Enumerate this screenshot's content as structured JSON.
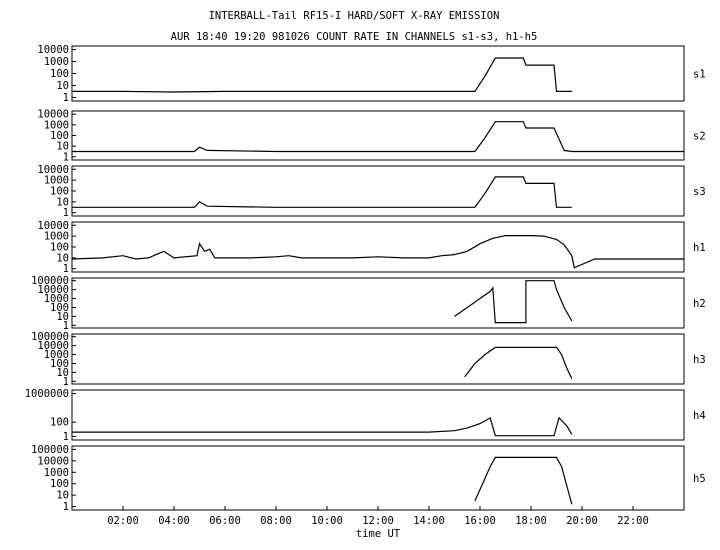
{
  "chart_data": {
    "type": "line",
    "title": "INTERBALL-Tail RF15-I HARD/SOFT X-RAY EMISSION",
    "subtitle": "AUR 18:40 19:20 981026  COUNT RATE IN CHANNELS s1-s3, h1-h5",
    "xlabel": "time UT",
    "x_ticks": [
      "02:00",
      "04:00",
      "06:00",
      "08:00",
      "10:00",
      "12:00",
      "14:00",
      "16:00",
      "18:00",
      "20:00",
      "22:00"
    ],
    "xlim_hours": [
      0,
      24
    ],
    "y_scale": "log",
    "panels": [
      {
        "name": "s1",
        "y_ticks": [
          "10000",
          "1000",
          "100",
          "10",
          "1"
        ],
        "ylim_log10": [
          -0.3,
          4.3
        ],
        "points": [
          [
            0.0,
            0.5
          ],
          [
            2.0,
            0.5
          ],
          [
            4.0,
            0.45
          ],
          [
            6.0,
            0.5
          ],
          [
            8.0,
            0.5
          ],
          [
            10.0,
            0.5
          ],
          [
            12.0,
            0.5
          ],
          [
            14.0,
            0.5
          ],
          [
            15.8,
            0.5
          ],
          [
            16.2,
            1.8
          ],
          [
            16.6,
            3.3
          ],
          [
            17.7,
            3.3
          ],
          [
            17.8,
            2.7
          ],
          [
            18.9,
            2.7
          ],
          [
            19.0,
            0.5
          ],
          [
            19.6,
            0.5
          ]
        ]
      },
      {
        "name": "s2",
        "y_ticks": [
          "10000",
          "1000",
          "100",
          "10",
          "1"
        ],
        "ylim_log10": [
          -0.3,
          4.3
        ],
        "points": [
          [
            0.0,
            0.5
          ],
          [
            4.8,
            0.5
          ],
          [
            5.0,
            0.9
          ],
          [
            5.3,
            0.6
          ],
          [
            8.0,
            0.5
          ],
          [
            12.0,
            0.5
          ],
          [
            15.8,
            0.5
          ],
          [
            16.2,
            1.8
          ],
          [
            16.6,
            3.3
          ],
          [
            17.7,
            3.3
          ],
          [
            17.8,
            2.7
          ],
          [
            18.9,
            2.7
          ],
          [
            19.3,
            0.6
          ],
          [
            19.6,
            0.5
          ],
          [
            24.0,
            0.5
          ]
        ]
      },
      {
        "name": "s3",
        "y_ticks": [
          "10000",
          "1000",
          "100",
          "10",
          "1"
        ],
        "ylim_log10": [
          -0.3,
          4.3
        ],
        "points": [
          [
            0.0,
            0.5
          ],
          [
            4.8,
            0.5
          ],
          [
            5.0,
            1.0
          ],
          [
            5.3,
            0.6
          ],
          [
            8.0,
            0.5
          ],
          [
            12.0,
            0.5
          ],
          [
            15.8,
            0.5
          ],
          [
            16.2,
            1.8
          ],
          [
            16.6,
            3.3
          ],
          [
            17.7,
            3.3
          ],
          [
            17.8,
            2.7
          ],
          [
            18.9,
            2.7
          ],
          [
            19.0,
            0.5
          ],
          [
            19.6,
            0.5
          ]
        ]
      },
      {
        "name": "h1",
        "y_ticks": [
          "10000",
          "1000",
          "100",
          "10",
          "1"
        ],
        "ylim_log10": [
          -0.3,
          4.3
        ],
        "points": [
          [
            0.0,
            0.9
          ],
          [
            1.2,
            1.0
          ],
          [
            2.0,
            1.2
          ],
          [
            2.5,
            0.9
          ],
          [
            3.0,
            1.0
          ],
          [
            3.6,
            1.6
          ],
          [
            4.0,
            1.0
          ],
          [
            4.9,
            1.2
          ],
          [
            5.0,
            2.3
          ],
          [
            5.2,
            1.6
          ],
          [
            5.4,
            1.8
          ],
          [
            5.6,
            1.0
          ],
          [
            6.0,
            1.0
          ],
          [
            7.0,
            1.0
          ],
          [
            8.0,
            1.1
          ],
          [
            8.5,
            1.2
          ],
          [
            9.0,
            1.0
          ],
          [
            11.0,
            1.0
          ],
          [
            12.0,
            1.1
          ],
          [
            13.0,
            1.0
          ],
          [
            14.0,
            1.0
          ],
          [
            14.5,
            1.2
          ],
          [
            15.0,
            1.3
          ],
          [
            15.5,
            1.6
          ],
          [
            16.0,
            2.3
          ],
          [
            16.5,
            2.8
          ],
          [
            17.0,
            3.05
          ],
          [
            18.0,
            3.05
          ],
          [
            18.5,
            3.0
          ],
          [
            19.0,
            2.7
          ],
          [
            19.3,
            2.2
          ],
          [
            19.6,
            1.2
          ],
          [
            19.7,
            0.1
          ],
          [
            20.5,
            0.9
          ],
          [
            24.0,
            0.9
          ]
        ]
      },
      {
        "name": "h2",
        "y_ticks": [
          "100000",
          "10000",
          "1000",
          "100",
          "10",
          "1"
        ],
        "ylim_log10": [
          -0.3,
          5.3
        ],
        "points": [
          [
            15.0,
            1.0
          ],
          [
            15.5,
            2.0
          ],
          [
            16.0,
            3.0
          ],
          [
            16.4,
            3.8
          ],
          [
            16.5,
            4.2
          ],
          [
            16.6,
            0.3
          ],
          [
            17.8,
            0.3
          ],
          [
            17.8,
            5.0
          ],
          [
            18.9,
            5.0
          ],
          [
            19.0,
            4.0
          ],
          [
            19.3,
            2.0
          ],
          [
            19.6,
            0.5
          ]
        ]
      },
      {
        "name": "h3",
        "y_ticks": [
          "100000",
          "10000",
          "1000",
          "100",
          "10",
          "1"
        ],
        "ylim_log10": [
          -0.3,
          5.3
        ],
        "points": [
          [
            15.4,
            0.5
          ],
          [
            15.8,
            2.0
          ],
          [
            16.2,
            3.0
          ],
          [
            16.6,
            3.8
          ],
          [
            19.0,
            3.8
          ],
          [
            19.2,
            3.0
          ],
          [
            19.4,
            1.5
          ],
          [
            19.6,
            0.3
          ]
        ]
      },
      {
        "name": "h4",
        "y_ticks": [
          "1000000",
          "100",
          "1"
        ],
        "ylim_log10": [
          -0.5,
          6.5
        ],
        "points": [
          [
            0.0,
            0.6
          ],
          [
            14.0,
            0.6
          ],
          [
            15.0,
            0.8
          ],
          [
            15.5,
            1.2
          ],
          [
            16.0,
            1.8
          ],
          [
            16.4,
            2.6
          ],
          [
            16.6,
            0.1
          ],
          [
            18.9,
            0.1
          ],
          [
            19.1,
            2.6
          ],
          [
            19.4,
            1.5
          ],
          [
            19.6,
            0.3
          ]
        ]
      },
      {
        "name": "h5",
        "y_ticks": [
          "100000",
          "10000",
          "1000",
          "100",
          "10",
          "1"
        ],
        "ylim_log10": [
          -0.3,
          5.3
        ],
        "points": [
          [
            15.8,
            0.5
          ],
          [
            16.1,
            2.0
          ],
          [
            16.4,
            3.5
          ],
          [
            16.6,
            4.3
          ],
          [
            19.0,
            4.3
          ],
          [
            19.2,
            3.5
          ],
          [
            19.5,
            1.0
          ],
          [
            19.6,
            0.2
          ]
        ]
      }
    ]
  }
}
